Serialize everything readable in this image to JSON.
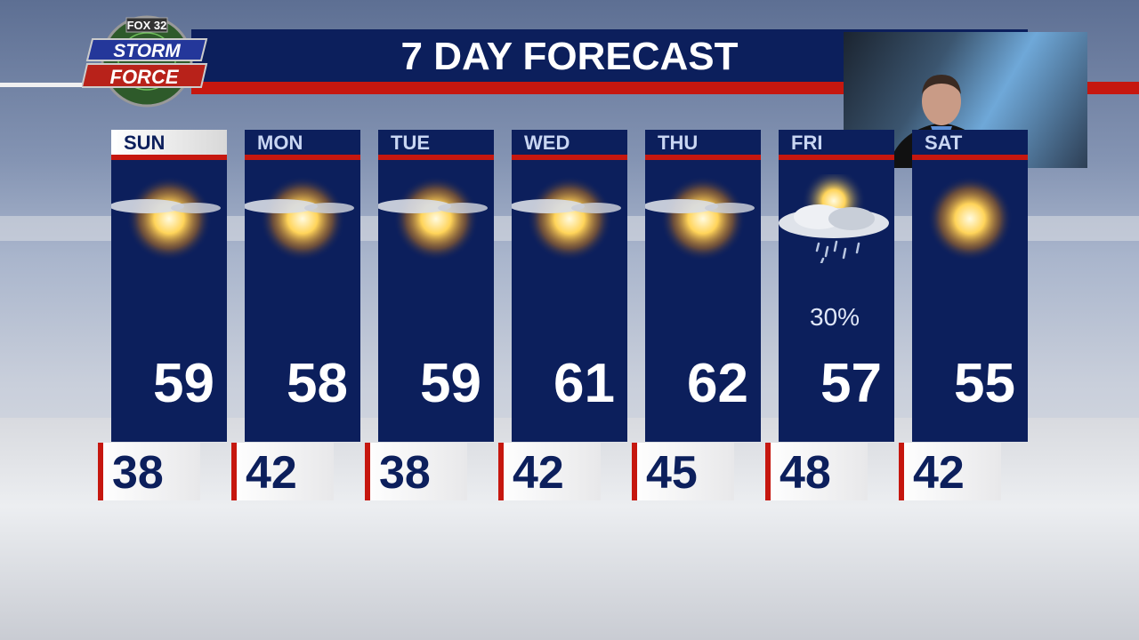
{
  "logo": {
    "network": "FOX 32",
    "line1": "STORM",
    "line2": "FORCE"
  },
  "title": "7 DAY FORECAST",
  "colors": {
    "navy": "#0c1f5c",
    "red": "#c6170f"
  },
  "days": [
    {
      "day": "SUN",
      "high": "59",
      "low": "38",
      "icon": "partly-sunny-icon",
      "precip": ""
    },
    {
      "day": "MON",
      "high": "58",
      "low": "42",
      "icon": "partly-sunny-icon",
      "precip": ""
    },
    {
      "day": "TUE",
      "high": "59",
      "low": "38",
      "icon": "partly-sunny-icon",
      "precip": ""
    },
    {
      "day": "WED",
      "high": "61",
      "low": "42",
      "icon": "partly-sunny-icon",
      "precip": ""
    },
    {
      "day": "THU",
      "high": "62",
      "low": "45",
      "icon": "partly-sunny-icon",
      "precip": ""
    },
    {
      "day": "FRI",
      "high": "57",
      "low": "48",
      "icon": "rain-showers-icon",
      "precip": "30%"
    },
    {
      "day": "SAT",
      "high": "55",
      "low": "42",
      "icon": "sunny-icon",
      "precip": ""
    }
  ]
}
